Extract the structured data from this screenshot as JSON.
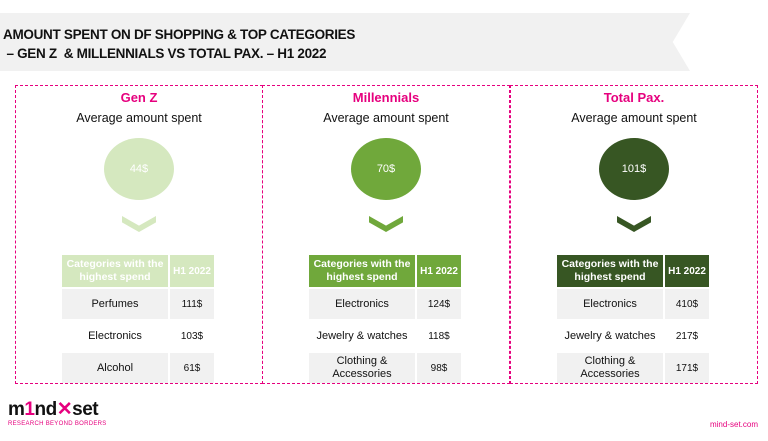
{
  "title": {
    "line1": "AMOUNT SPENT ON DF SHOPPING & TOP CATEGORIES",
    "line2": " – GEN Z  & MILLENNIALS VS TOTAL PAX. – H1 2022"
  },
  "colors": {
    "accent": "#e6007e",
    "genz": "#d5e8bf",
    "millennials": "#70a83b",
    "total": "#375623"
  },
  "panels": [
    {
      "name": "Gen Z",
      "avg_label": "Average amount spent",
      "avg": "44$",
      "col1": "Categories with the highest spend",
      "col2": "H1 2022",
      "rows": [
        {
          "cat": "Perfumes",
          "val": "111$"
        },
        {
          "cat": "Electronics",
          "val": "103$"
        },
        {
          "cat": "Alcohol",
          "val": "61$"
        }
      ]
    },
    {
      "name": "Millennials",
      "avg_label": "Average amount spent",
      "avg": "70$",
      "col1": "Categories with the highest spend",
      "col2": "H1 2022",
      "rows": [
        {
          "cat": "Electronics",
          "val": "124$"
        },
        {
          "cat": "Jewelry & watches",
          "val": "118$"
        },
        {
          "cat": "Clothing & Accessories",
          "val": "98$"
        }
      ]
    },
    {
      "name": "Total Pax.",
      "avg_label": "Average amount spent",
      "avg": "101$",
      "col1": "Categories with the highest spend",
      "col2": "H1 2022",
      "rows": [
        {
          "cat": "Electronics",
          "val": "410$"
        },
        {
          "cat": "Jewelry & watches",
          "val": "217$"
        },
        {
          "cat": "Clothing & Accessories",
          "val": "171$"
        }
      ]
    }
  ],
  "logo": {
    "word": "m1nd-set",
    "tagline": "RESEARCH BEYOND BORDERS"
  },
  "site": "mind-set.com"
}
